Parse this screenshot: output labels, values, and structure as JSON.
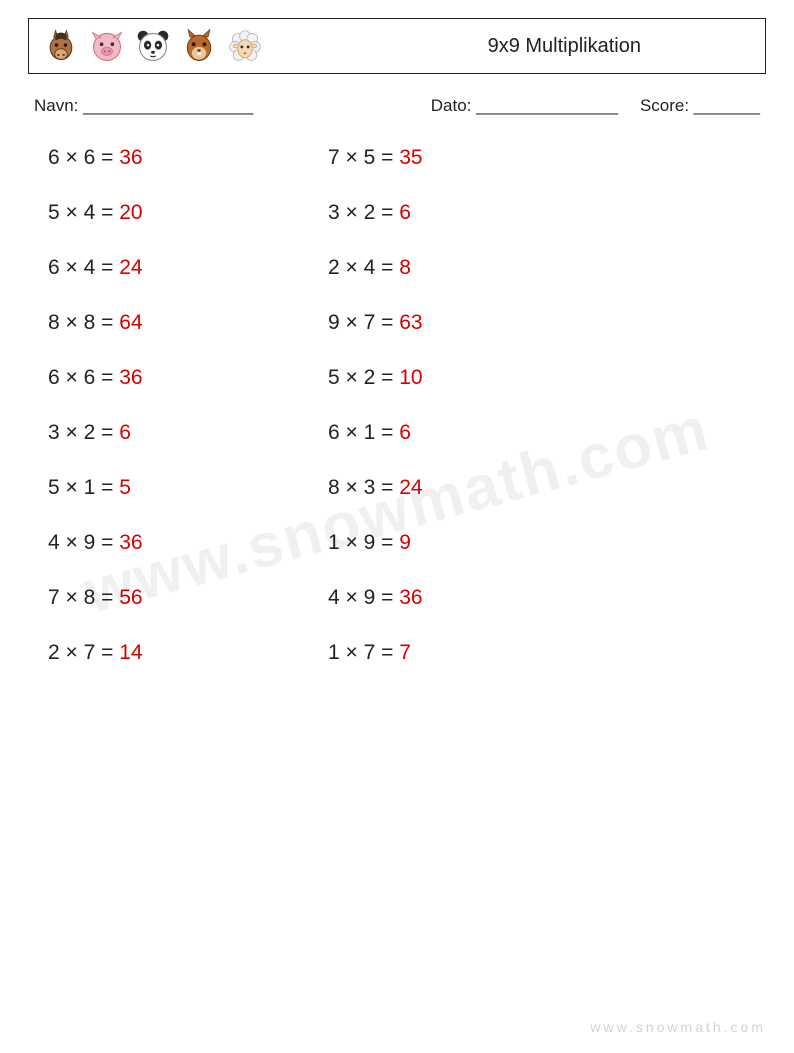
{
  "header": {
    "title": "9x9 Multiplikation"
  },
  "info": {
    "name_label": "Navn: __________________",
    "date_label": "Dato: _______________",
    "score_label": "Score: _______"
  },
  "text_color": "#222222",
  "answer_color": "#d60000",
  "problem_fontsize": 21,
  "columns": [
    [
      {
        "a": 6,
        "b": 6,
        "ans": 36
      },
      {
        "a": 5,
        "b": 4,
        "ans": 20
      },
      {
        "a": 6,
        "b": 4,
        "ans": 24
      },
      {
        "a": 8,
        "b": 8,
        "ans": 64
      },
      {
        "a": 6,
        "b": 6,
        "ans": 36
      },
      {
        "a": 3,
        "b": 2,
        "ans": 6
      },
      {
        "a": 5,
        "b": 1,
        "ans": 5
      },
      {
        "a": 4,
        "b": 9,
        "ans": 36
      },
      {
        "a": 7,
        "b": 8,
        "ans": 56
      },
      {
        "a": 2,
        "b": 7,
        "ans": 14
      }
    ],
    [
      {
        "a": 7,
        "b": 5,
        "ans": 35
      },
      {
        "a": 3,
        "b": 2,
        "ans": 6
      },
      {
        "a": 2,
        "b": 4,
        "ans": 8
      },
      {
        "a": 9,
        "b": 7,
        "ans": 63
      },
      {
        "a": 5,
        "b": 2,
        "ans": 10
      },
      {
        "a": 6,
        "b": 1,
        "ans": 6
      },
      {
        "a": 8,
        "b": 3,
        "ans": 24
      },
      {
        "a": 1,
        "b": 9,
        "ans": 9
      },
      {
        "a": 4,
        "b": 9,
        "ans": 36
      },
      {
        "a": 1,
        "b": 7,
        "ans": 7
      }
    ]
  ],
  "watermark": "www.snowmath.com",
  "footer": "www.snowmath.com"
}
